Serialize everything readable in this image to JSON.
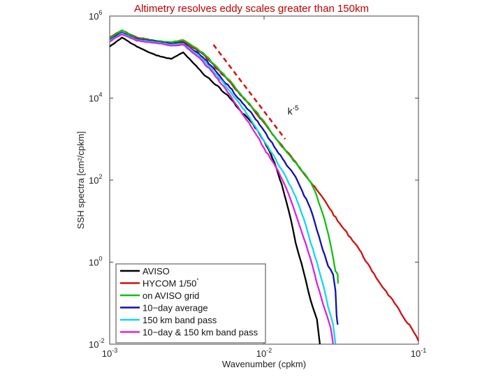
{
  "chart_data": {
    "type": "line",
    "title": "Altimetry resolves eddy scales greater than 150km",
    "xlabel": "Wavenumber (cpkm)",
    "ylabel": "SSH spectra [cm²/cpkm]",
    "xscale": "log",
    "yscale": "log",
    "xlim": [
      0.001,
      0.1
    ],
    "ylim": [
      0.01,
      1000000
    ],
    "x_ticks": [
      {
        "value": 0.001,
        "base": "10",
        "exp": "-3"
      },
      {
        "value": 0.01,
        "base": "10",
        "exp": "-2"
      },
      {
        "value": 0.1,
        "base": "10",
        "exp": "-1"
      }
    ],
    "y_ticks": [
      {
        "value": 1000000,
        "base": "10",
        "exp": "6"
      },
      {
        "value": 10000,
        "base": "10",
        "exp": "4"
      },
      {
        "value": 100,
        "base": "10",
        "exp": "2"
      },
      {
        "value": 1,
        "base": "10",
        "exp": "0"
      },
      {
        "value": 0.01,
        "base": "10",
        "exp": "-2"
      }
    ],
    "legend_position": "bottom-left",
    "annotation": {
      "text": "k",
      "superscript": "-5",
      "x": 0.0142,
      "y": 4000
    },
    "reference_line": {
      "name": "k^-5 slope",
      "color": "#d01010",
      "style": "dashed",
      "x": [
        0.0047,
        0.0137
      ],
      "y": [
        200000,
        1000
      ]
    },
    "series": [
      {
        "name": "AVISO",
        "color": "#000000",
        "x": [
          0.001,
          0.0012,
          0.0015,
          0.0018,
          0.002,
          0.0025,
          0.003,
          0.0035,
          0.004,
          0.005,
          0.006,
          0.007,
          0.008,
          0.009,
          0.01,
          0.011,
          0.012,
          0.013,
          0.014,
          0.015,
          0.016,
          0.018,
          0.02,
          0.022,
          0.023
        ],
        "y": [
          180000,
          300000,
          180000,
          130000,
          110000,
          90000,
          130000,
          70000,
          40000,
          20000,
          10000,
          5000,
          3000,
          1700,
          900,
          450,
          200,
          80,
          28,
          10,
          3,
          0.6,
          0.12,
          0.04,
          0.01
        ]
      },
      {
        "name": "HYCOM 1/50",
        "name_sup": "°",
        "color": "#d01010",
        "x": [
          0.001,
          0.0012,
          0.0015,
          0.002,
          0.0025,
          0.003,
          0.004,
          0.005,
          0.006,
          0.007,
          0.008,
          0.01,
          0.012,
          0.014,
          0.016,
          0.02,
          0.025,
          0.03,
          0.04,
          0.05,
          0.06,
          0.07,
          0.08,
          0.09,
          0.1
        ],
        "y": [
          300000,
          450000,
          300000,
          250000,
          220000,
          240000,
          120000,
          50000,
          25000,
          12000,
          7000,
          2500,
          1000,
          500,
          280,
          90,
          30,
          10,
          2.5,
          0.6,
          0.22,
          0.1,
          0.045,
          0.025,
          0.012
        ]
      },
      {
        "name": "on AVISO grid",
        "color": "#10c010",
        "x": [
          0.001,
          0.0012,
          0.0015,
          0.002,
          0.0025,
          0.003,
          0.004,
          0.005,
          0.006,
          0.007,
          0.008,
          0.01,
          0.012,
          0.014,
          0.016,
          0.02,
          0.022,
          0.024,
          0.026,
          0.028,
          0.029,
          0.03,
          0.0301
        ],
        "y": [
          280000,
          450000,
          280000,
          250000,
          230000,
          260000,
          130000,
          55000,
          27000,
          13000,
          7500,
          2700,
          1000,
          480,
          270,
          90,
          40,
          15,
          5,
          1.3,
          0.6,
          0.5,
          0.3
        ]
      },
      {
        "name": "10−day average",
        "color": "#1010b0",
        "x": [
          0.001,
          0.0012,
          0.0015,
          0.002,
          0.0025,
          0.003,
          0.004,
          0.005,
          0.006,
          0.007,
          0.008,
          0.01,
          0.012,
          0.014,
          0.016,
          0.02,
          0.022,
          0.024,
          0.026,
          0.028,
          0.029,
          0.0295,
          0.03
        ],
        "y": [
          260000,
          400000,
          270000,
          240000,
          210000,
          220000,
          100000,
          40000,
          18000,
          9000,
          5000,
          1600,
          550,
          230,
          120,
          20,
          6,
          2,
          0.8,
          0.5,
          0.2,
          0.05,
          0.03
        ]
      },
      {
        "name": "150 km band pass",
        "color": "#10d8e8",
        "x": [
          0.001,
          0.0012,
          0.0015,
          0.002,
          0.0025,
          0.003,
          0.004,
          0.005,
          0.006,
          0.007,
          0.008,
          0.01,
          0.012,
          0.014,
          0.016,
          0.018,
          0.02,
          0.022,
          0.024,
          0.026,
          0.028,
          0.029
        ],
        "y": [
          250000,
          380000,
          260000,
          230000,
          200000,
          210000,
          90000,
          35000,
          15000,
          7000,
          3500,
          900,
          300,
          110,
          40,
          12,
          3,
          1,
          0.3,
          0.08,
          0.03,
          0.01
        ]
      },
      {
        "name": "10−day & 150 km band pass",
        "color": "#e020e0",
        "x": [
          0.001,
          0.0012,
          0.0015,
          0.002,
          0.0025,
          0.003,
          0.004,
          0.005,
          0.006,
          0.007,
          0.008,
          0.009,
          0.01,
          0.012,
          0.014,
          0.016,
          0.018,
          0.02,
          0.022,
          0.024,
          0.026,
          0.027,
          0.028
        ],
        "y": [
          240000,
          360000,
          250000,
          220000,
          190000,
          200000,
          80000,
          30000,
          12000,
          5000,
          2500,
          1200,
          600,
          200,
          60,
          15,
          4,
          1.2,
          0.3,
          0.1,
          0.04,
          0.025,
          0.01
        ]
      }
    ]
  }
}
